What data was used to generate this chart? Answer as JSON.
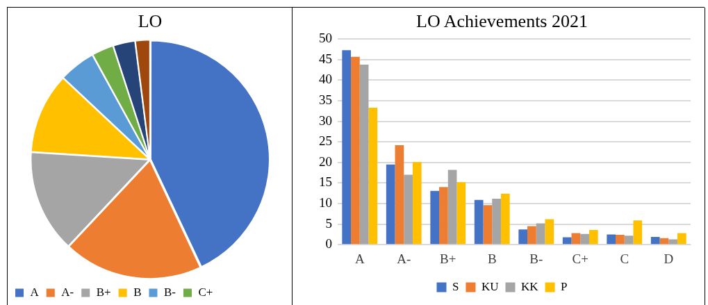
{
  "chart_data": [
    {
      "type": "pie",
      "title": "LO",
      "categories": [
        "A",
        "A-",
        "B+",
        "B",
        "B-",
        "C+",
        null,
        null
      ],
      "values": [
        43,
        19,
        14,
        11,
        5,
        3,
        3,
        2
      ],
      "colors": [
        "#4472c4",
        "#ed7d31",
        "#a5a5a5",
        "#ffc000",
        "#5b9bd5",
        "#70ad47",
        "#264478",
        "#9e480e"
      ],
      "legend": "bottom"
    },
    {
      "type": "bar",
      "title": "LO Achievements 2021",
      "categories": [
        "A",
        "A-",
        "B+",
        "B",
        "B-",
        "C+",
        "C",
        "D"
      ],
      "series": [
        {
          "name": "S",
          "color": "#4472c4",
          "values": [
            47.3,
            19.5,
            13.1,
            10.9,
            3.7,
            1.8,
            2.5,
            1.9
          ]
        },
        {
          "name": "KU",
          "color": "#ed7d31",
          "values": [
            45.7,
            24.2,
            14,
            9.6,
            4.5,
            2.8,
            2.4,
            1.6
          ]
        },
        {
          "name": "KK",
          "color": "#a5a5a5",
          "values": [
            43.8,
            17,
            18.2,
            11.2,
            5.2,
            2.6,
            2.2,
            1.3
          ]
        },
        {
          "name": "P",
          "color": "#ffc000",
          "values": [
            33.3,
            20.1,
            15.2,
            12.4,
            6.2,
            3.6,
            5.9,
            2.8
          ]
        }
      ],
      "ylim": [
        0,
        50
      ],
      "yticks": [
        0,
        5,
        10,
        15,
        20,
        25,
        30,
        35,
        40,
        45,
        50
      ],
      "grid": "y",
      "legend": "bottom"
    }
  ]
}
